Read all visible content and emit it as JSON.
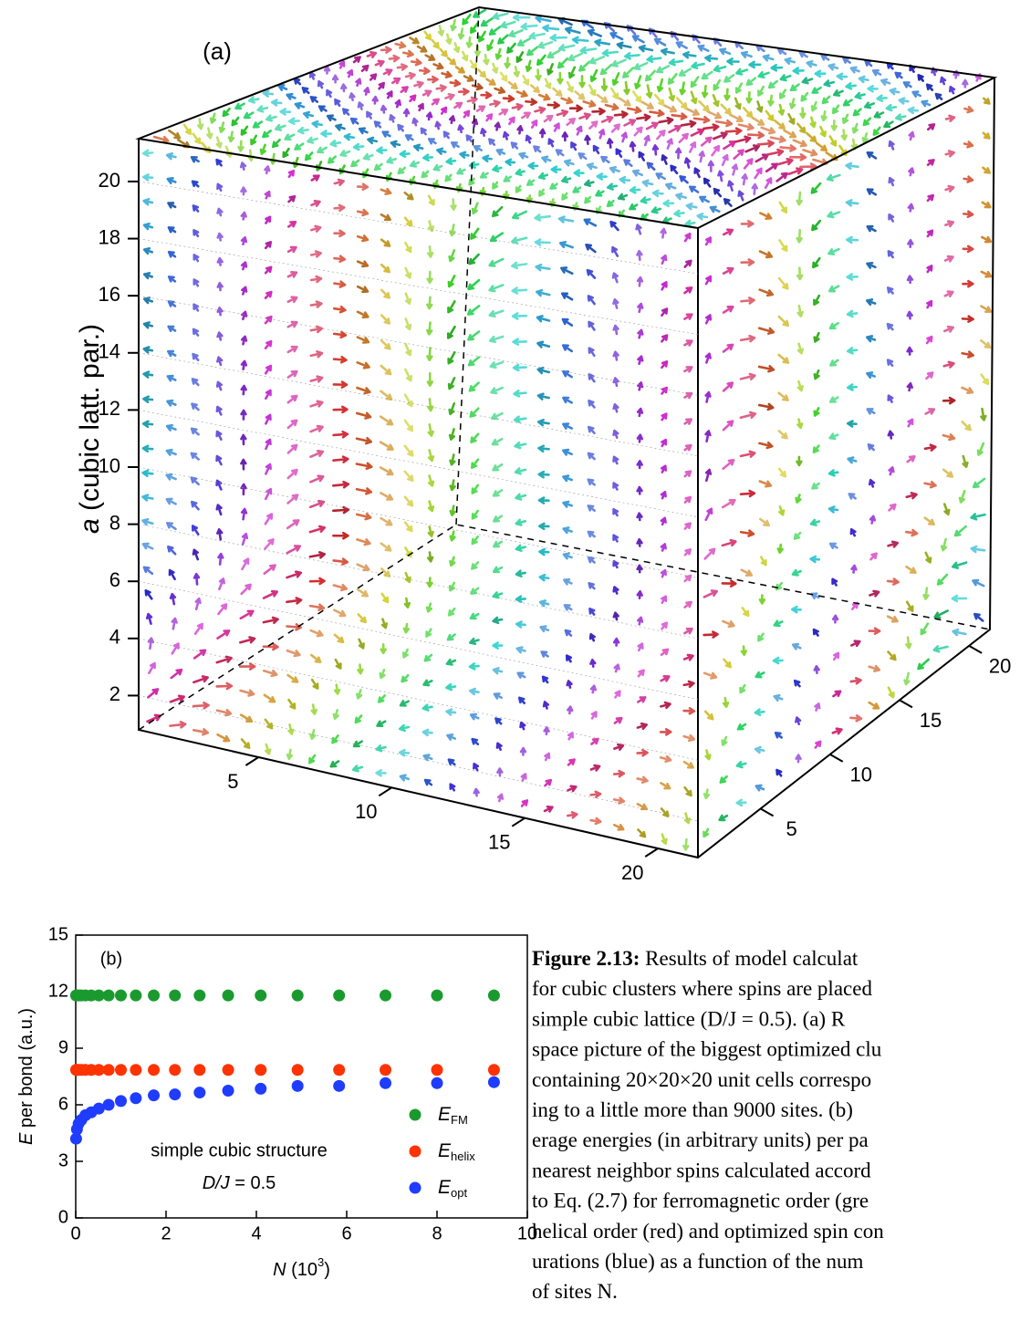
{
  "panel_a": {
    "label": "(a)",
    "zlabel_var": "a",
    "zlabel_rest": " (cubic latt. par.)",
    "zlim": [
      0.8,
      21.5
    ],
    "zticks": [
      2,
      4,
      6,
      8,
      10,
      12,
      14,
      16,
      18,
      20
    ],
    "xlim": [
      0.5,
      21.5
    ],
    "xticks": [
      5,
      10,
      15,
      20
    ],
    "ylim": [
      0.5,
      21.5
    ],
    "yticks": [
      5,
      10,
      15,
      20
    ]
  },
  "chart_data": {
    "type": "scatter",
    "label": "(b)",
    "xlabel_var": "N",
    "xlabel_rest": " (10",
    "xlabel_exp": "3",
    "xlabel_close": ")",
    "ylabel_var": "E",
    "ylabel_rest": " per bond (a.u.)",
    "annotation": "simple cubic structure",
    "annotation2_italic": "D/J",
    "annotation2_rest": " = 0.5",
    "xlim": [
      0,
      10
    ],
    "xticks": [
      0,
      2,
      4,
      6,
      8,
      10
    ],
    "ylim": [
      0,
      15
    ],
    "yticks": [
      0,
      3,
      6,
      9,
      12,
      15
    ],
    "x": [
      0.008,
      0.027,
      0.064,
      0.125,
      0.216,
      0.343,
      0.512,
      0.729,
      1.0,
      1.331,
      1.728,
      2.197,
      2.744,
      3.375,
      4.096,
      4.913,
      5.832,
      6.859,
      8.0,
      9.261
    ],
    "series": [
      {
        "name": "E",
        "name_sub": "FM",
        "color": "#1a9a2e",
        "values": [
          11.8,
          11.8,
          11.8,
          11.8,
          11.8,
          11.8,
          11.8,
          11.8,
          11.8,
          11.8,
          11.8,
          11.8,
          11.8,
          11.8,
          11.8,
          11.8,
          11.8,
          11.8,
          11.8,
          11.8
        ]
      },
      {
        "name": "E",
        "name_sub": "helix",
        "color": "#ff3300",
        "values": [
          7.85,
          7.85,
          7.85,
          7.85,
          7.85,
          7.85,
          7.85,
          7.85,
          7.85,
          7.85,
          7.85,
          7.85,
          7.85,
          7.85,
          7.85,
          7.85,
          7.85,
          7.85,
          7.85,
          7.85
        ]
      },
      {
        "name": "E",
        "name_sub": "opt",
        "color": "#1f3cff",
        "values": [
          4.2,
          4.7,
          5.0,
          5.2,
          5.45,
          5.6,
          5.8,
          6.0,
          6.2,
          6.35,
          6.5,
          6.55,
          6.65,
          6.75,
          6.85,
          7.0,
          7.0,
          7.15,
          7.15,
          7.2
        ]
      }
    ]
  },
  "caption": {
    "bold": "Figure 2.13:",
    "lines": [
      " Results of model calculat",
      "for cubic clusters where spins are placed",
      "simple cubic lattice (D/J = 0.5).  (a) R",
      "space picture of the biggest optimized clu",
      "containing 20×20×20 unit cells correspo",
      "ing to a little more than 9000 sites.  (b)",
      "erage energies (in arbitrary units) per pa",
      "nearest neighbor spins calculated accord",
      "to Eq. (2.7) for ferromagnetic order (gre",
      "helical order (red) and optimized spin con",
      "urations (blue) as a function of the num",
      "of sites N."
    ]
  }
}
